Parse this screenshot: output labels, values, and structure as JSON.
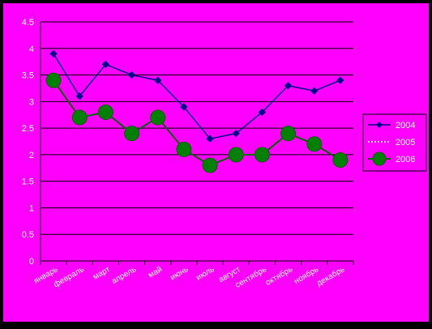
{
  "colors": {
    "outer_frame": "#000000",
    "background": "#FF00FF",
    "gridline": "#000000",
    "axis_text": "#FFFFFF",
    "series_2004": "#00008B",
    "series_2005": "#FFFFFF",
    "series_2006": "#006400",
    "series_2006_marker": "#008000"
  },
  "chart_data": {
    "type": "line",
    "title": "",
    "xlabel": "",
    "ylabel": "",
    "ylim": [
      0,
      4.5
    ],
    "yticks": [
      "0",
      "0.5",
      "1",
      "1.5",
      "2",
      "2.5",
      "3",
      "3.5",
      "4",
      "4.5"
    ],
    "grid": true,
    "legend_position": "right",
    "categories": [
      "январь",
      "февраль",
      "март",
      "апрель",
      "май",
      "июнь",
      "июль",
      "август",
      "сентябрь",
      "октябрь",
      "ноябрь",
      "декабрь"
    ],
    "series": [
      {
        "name": "2004",
        "marker": "diamond",
        "values": [
          3.9,
          3.1,
          3.7,
          3.5,
          3.4,
          2.9,
          2.3,
          2.4,
          2.8,
          3.3,
          3.2,
          3.4
        ]
      },
      {
        "name": "2005",
        "marker": "none",
        "values": [
          3.9,
          3.1,
          3.7,
          3.5,
          3.4,
          2.9,
          2.3,
          2.4,
          2.8,
          3.3,
          3.2,
          3.4
        ]
      },
      {
        "name": "2006",
        "marker": "circle",
        "values": [
          3.4,
          2.7,
          2.8,
          2.4,
          2.7,
          2.1,
          1.8,
          2.0,
          2.0,
          2.4,
          2.2,
          1.9
        ]
      }
    ]
  }
}
